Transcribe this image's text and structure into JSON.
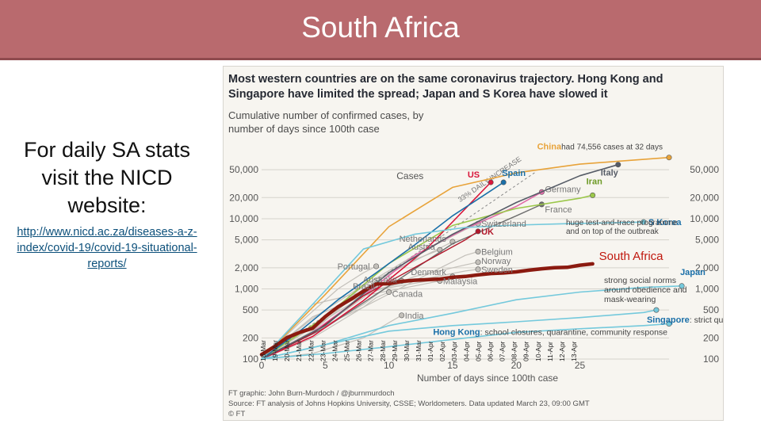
{
  "slide": {
    "title": "South Africa",
    "left_heading": "For daily SA stats visit the NICD website:",
    "left_link": "http://www.nicd.ac.za/diseases-a-z-index/covid-19/covid-19-situational-reports/"
  },
  "colors": {
    "title_bar": "#b96a6e",
    "sa_line": "#8b1a10",
    "sa_label": "#c0180e",
    "accent_red": "#d8163a",
    "asia_blue": "#1a6fa8"
  },
  "chart_data": {
    "type": "line",
    "title": "Most western countries are on the same coronavirus trajectory. Hong Kong and Singapore have limited the spread; Japan and S Korea have slowed it",
    "subtitle": "Cumulative number of confirmed cases, by number of days since 100th case",
    "y_inner_label": "Cases",
    "xlabel": "Number of days since 100th case",
    "x_range": [
      0,
      32
    ],
    "y_scale": "log",
    "ylim": [
      100,
      80000
    ],
    "y_ticks": [
      100,
      200,
      500,
      1000,
      2000,
      5000,
      10000,
      20000,
      50000
    ],
    "y_tick_labels_left": [
      "100",
      "200",
      "500",
      "1,000",
      "2,000",
      "5,000",
      "10,000",
      "20,000",
      "50,000"
    ],
    "y_tick_labels_right": [
      "100",
      "200",
      "500",
      "1,000",
      "2,000",
      "5,000",
      "10,000",
      "20,000",
      "50,000"
    ],
    "x_ticks": [
      0,
      5,
      10,
      15,
      20,
      25
    ],
    "reference_line_label": "33% DAILY INCREASE",
    "date_labels": [
      "18-Mar",
      "19-Mar",
      "20-Mar",
      "21-Mar",
      "22-Mar",
      "23-Mar",
      "24-Mar",
      "25-Mar",
      "26-Mar",
      "27-Mar",
      "28-Mar",
      "29-Mar",
      "30-Mar",
      "31-Mar",
      "01-Apr",
      "02-Apr",
      "03-Apr",
      "04-Apr",
      "05-Apr",
      "06-Apr",
      "07-Apr",
      "08-Apr",
      "09-Apr",
      "10-Apr",
      "11-Apr",
      "12-Apr",
      "13-Apr"
    ],
    "series": [
      {
        "name": "China",
        "style": "china",
        "x": [
          0,
          5,
          10,
          15,
          20,
          25,
          28,
          32
        ],
        "y": [
          100,
          830,
          7700,
          28000,
          45000,
          60000,
          66000,
          74556
        ]
      },
      {
        "name": "Italy",
        "style": "italy",
        "x": [
          0,
          5,
          10,
          15,
          20,
          25,
          28
        ],
        "y": [
          100,
          300,
          1700,
          6000,
          17000,
          41000,
          59000
        ]
      },
      {
        "name": "US",
        "style": "us",
        "x": [
          0,
          4,
          8,
          11,
          13,
          15,
          18
        ],
        "y": [
          100,
          210,
          680,
          1900,
          3800,
          9000,
          33000
        ]
      },
      {
        "name": "Spain",
        "style": "spain",
        "x": [
          0,
          3,
          6,
          9,
          12,
          15,
          18,
          19
        ],
        "y": [
          100,
          250,
          700,
          1700,
          4200,
          11000,
          25000,
          33000
        ]
      },
      {
        "name": "Germany",
        "style": "germany",
        "x": [
          0,
          4,
          8,
          12,
          16,
          20,
          22
        ],
        "y": [
          100,
          240,
          800,
          3000,
          7200,
          15000,
          24000
        ]
      },
      {
        "name": "Iran",
        "style": "iran",
        "x": [
          0,
          5,
          10,
          15,
          20,
          25,
          26
        ],
        "y": [
          100,
          400,
          2300,
          8000,
          14000,
          19600,
          21600
        ]
      },
      {
        "name": "France",
        "style": "france",
        "x": [
          0,
          5,
          10,
          15,
          20,
          22
        ],
        "y": [
          100,
          280,
          1100,
          4400,
          11000,
          16000
        ]
      },
      {
        "name": "Switzerland",
        "style": "europe",
        "x": [
          0,
          4,
          8,
          12,
          16,
          17
        ],
        "y": [
          100,
          280,
          1100,
          3000,
          7000,
          8500
        ]
      },
      {
        "name": "UK",
        "style": "uk",
        "x": [
          0,
          4,
          8,
          12,
          16,
          17
        ],
        "y": [
          100,
          230,
          800,
          2000,
          5000,
          6600
        ]
      },
      {
        "name": "Netherlands",
        "style": "europe",
        "x": [
          0,
          4,
          8,
          12,
          15
        ],
        "y": [
          100,
          380,
          1130,
          2500,
          4700
        ]
      },
      {
        "name": "Belgium",
        "style": "europe",
        "x": [
          0,
          4,
          8,
          12,
          16,
          17
        ],
        "y": [
          100,
          200,
          550,
          1300,
          3000,
          3400
        ]
      },
      {
        "name": "Austria",
        "style": "europe",
        "x": [
          0,
          4,
          8,
          12,
          14
        ],
        "y": [
          100,
          250,
          1000,
          2600,
          3600
        ]
      },
      {
        "name": "Norway",
        "style": "europe",
        "x": [
          0,
          4,
          8,
          12,
          16,
          17
        ],
        "y": [
          100,
          280,
          800,
          1500,
          2200,
          2400
        ]
      },
      {
        "name": "Sweden",
        "style": "europe",
        "x": [
          0,
          4,
          8,
          12,
          16,
          17
        ],
        "y": [
          100,
          300,
          900,
          1300,
          1800,
          1900
        ]
      },
      {
        "name": "Portugal",
        "style": "europe",
        "x": [
          0,
          3,
          6,
          8,
          9
        ],
        "y": [
          100,
          330,
          1000,
          1700,
          2100
        ]
      },
      {
        "name": "Denmark",
        "style": "europe",
        "x": [
          0,
          4,
          8,
          12,
          15
        ],
        "y": [
          100,
          600,
          900,
          1200,
          1500
        ]
      },
      {
        "name": "Australia",
        "style": "europe",
        "x": [
          0,
          4,
          8,
          10,
          11
        ],
        "y": [
          100,
          230,
          600,
          1100,
          1300
        ]
      },
      {
        "name": "Malaysia",
        "style": "europe",
        "x": [
          0,
          4,
          8,
          12,
          14
        ],
        "y": [
          100,
          400,
          800,
          1100,
          1300
        ]
      },
      {
        "name": "Canada",
        "style": "europe",
        "x": [
          0,
          4,
          8,
          9,
          10
        ],
        "y": [
          100,
          250,
          550,
          750,
          900
        ]
      },
      {
        "name": "Brazil",
        "style": "europe",
        "x": [
          0,
          4,
          8,
          9
        ],
        "y": [
          100,
          230,
          750,
          1100
        ]
      },
      {
        "name": "India",
        "style": "europe",
        "x": [
          0,
          4,
          8,
          10,
          11
        ],
        "y": [
          100,
          120,
          200,
          330,
          420
        ]
      },
      {
        "name": "S Korea",
        "style": "asia",
        "x": [
          0,
          4,
          8,
          12,
          16,
          20,
          24,
          28,
          30
        ],
        "y": [
          100,
          600,
          3700,
          6000,
          7500,
          8100,
          8500,
          8800,
          8961
        ]
      },
      {
        "name": "Japan",
        "style": "asia",
        "x": [
          0,
          5,
          10,
          15,
          20,
          25,
          30,
          33
        ],
        "y": [
          100,
          160,
          300,
          450,
          700,
          900,
          1050,
          1100
        ]
      },
      {
        "name": "Singapore",
        "style": "asia",
        "x": [
          0,
          5,
          10,
          15,
          20,
          25,
          30,
          31
        ],
        "y": [
          100,
          160,
          250,
          300,
          340,
          390,
          460,
          500
        ]
      },
      {
        "name": "Hong Kong",
        "style": "asia",
        "x": [
          0,
          5,
          10,
          15,
          20,
          25,
          30,
          32
        ],
        "y": [
          100,
          120,
          150,
          190,
          240,
          270,
          300,
          318
        ]
      },
      {
        "name": "South Africa",
        "style": "sa",
        "x": [
          0,
          1,
          2,
          3,
          4,
          5,
          6,
          7,
          8,
          9,
          10,
          11,
          12,
          13,
          14,
          15,
          16,
          17,
          18,
          19,
          20,
          21,
          22,
          23,
          24,
          25,
          26
        ],
        "y": [
          116,
          150,
          202,
          240,
          274,
          402,
          554,
          709,
          927,
          1170,
          1187,
          1280,
          1326,
          1353,
          1380,
          1462,
          1505,
          1585,
          1655,
          1686,
          1749,
          1845,
          1934,
          2003,
          2028,
          2173,
          2272
        ]
      }
    ],
    "point_labels": [
      {
        "series": "China",
        "text": "China",
        "suffix": "had 74,556 cases at 32 days"
      },
      {
        "series": "Italy",
        "text": "Italy"
      },
      {
        "series": "US",
        "text": "US"
      },
      {
        "series": "Spain",
        "text": "Spain"
      },
      {
        "series": "Germany",
        "text": "Germany"
      },
      {
        "series": "Iran",
        "text": "Iran"
      },
      {
        "series": "France",
        "text": "France"
      },
      {
        "series": "Switzerland",
        "text": "Switzerland"
      },
      {
        "series": "UK",
        "text": "UK"
      },
      {
        "series": "Netherlands",
        "text": "Netherlands"
      },
      {
        "series": "Belgium",
        "text": "Belgium"
      },
      {
        "series": "Austria",
        "text": "Austria"
      },
      {
        "series": "Norway",
        "text": "Norway"
      },
      {
        "series": "Sweden",
        "text": "Sweden"
      },
      {
        "series": "Portugal",
        "text": "Portugal"
      },
      {
        "series": "Denmark",
        "text": "Denmark"
      },
      {
        "series": "Australia",
        "text": "Australia"
      },
      {
        "series": "Malaysia",
        "text": "Malaysia"
      },
      {
        "series": "Canada",
        "text": "Canada"
      },
      {
        "series": "Brazil",
        "text": "Brazil"
      },
      {
        "series": "India",
        "text": "India"
      },
      {
        "series": "S Korea",
        "text": "S Korea",
        "suffix": ""
      },
      {
        "series": "Japan",
        "text": "Japan"
      },
      {
        "series": "Singapore",
        "text": "Singapore",
        "suffix": ": strict quarantine rules & contact tracing"
      },
      {
        "series": "Hong Kong",
        "text": "Hong Kong",
        "suffix": ": school closures, quarantine, community response"
      },
      {
        "series": "South Africa",
        "text": "South Africa"
      }
    ],
    "annotations": {
      "s_korea_note": "huge test-and-trace programme and on top of the outbreak",
      "japan_note": "strong social norms around obedience and mask-wearing"
    },
    "credits": {
      "graphic": "FT graphic: John Burn-Murdoch / @jburnmurdoch",
      "source": "Source: FT analysis of Johns Hopkins University, CSSE; Worldometers. Data updated March 23, 09:00 GMT",
      "copyright": "© FT"
    }
  }
}
